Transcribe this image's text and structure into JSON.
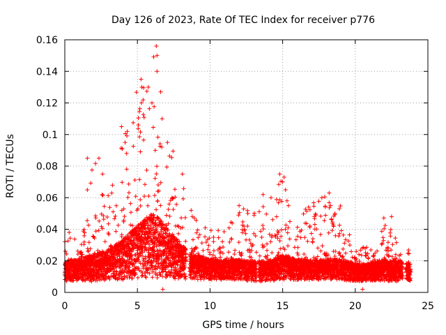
{
  "chart_data": {
    "type": "scatter",
    "title": "Day 126 of 2023, Rate Of TEC Index for receiver p776",
    "xlabel": "GPS time / hours",
    "ylabel": "ROTI / TECUs",
    "xlim": [
      0,
      25
    ],
    "ylim": [
      0,
      0.16
    ],
    "x_ticks": [
      0,
      5,
      10,
      15,
      20,
      25
    ],
    "x_tick_labels": [
      "0",
      "5",
      "10",
      "15",
      "20",
      "25"
    ],
    "y_ticks": [
      0,
      0.02,
      0.04,
      0.06,
      0.08,
      0.1,
      0.12,
      0.14,
      0.16
    ],
    "y_tick_labels": [
      "0",
      "0.02",
      "0.04",
      "0.06",
      "0.08",
      "0.1",
      "0.12",
      "0.14",
      "0.16"
    ],
    "grid": true,
    "marker": "+",
    "marker_color": "#ff0000",
    "data_gaps_hours": [
      [
        8.35,
        8.6
      ],
      [
        13.2,
        13.35
      ],
      [
        23.25,
        23.5
      ]
    ],
    "series": [
      {
        "name": "ROTI",
        "color": "#ff0000",
        "envelope_note": "Approximate per-hour envelope read from the plot: base is the typical lower band, typical is the dense cluster, peak is the upper extent of points in that hour.",
        "hourly_envelope": [
          {
            "hour": 0,
            "base": 0.007,
            "typical": 0.015,
            "peak": 0.038
          },
          {
            "hour": 1,
            "base": 0.007,
            "typical": 0.016,
            "peak": 0.035
          },
          {
            "hour": 2,
            "base": 0.007,
            "typical": 0.018,
            "peak": 0.085
          },
          {
            "hour": 3,
            "base": 0.008,
            "typical": 0.02,
            "peak": 0.065
          },
          {
            "hour": 4,
            "base": 0.008,
            "typical": 0.024,
            "peak": 0.105
          },
          {
            "hour": 5,
            "base": 0.009,
            "typical": 0.03,
            "peak": 0.135
          },
          {
            "hour": 6,
            "base": 0.009,
            "typical": 0.035,
            "peak": 0.156
          },
          {
            "hour": 7,
            "base": 0.009,
            "typical": 0.03,
            "peak": 0.105
          },
          {
            "hour": 8,
            "base": 0.008,
            "typical": 0.022,
            "peak": 0.075
          },
          {
            "hour": 9,
            "base": 0.008,
            "typical": 0.018,
            "peak": 0.05
          },
          {
            "hour": 10,
            "base": 0.008,
            "typical": 0.016,
            "peak": 0.042
          },
          {
            "hour": 11,
            "base": 0.008,
            "typical": 0.016,
            "peak": 0.04
          },
          {
            "hour": 12,
            "base": 0.008,
            "typical": 0.016,
            "peak": 0.055
          },
          {
            "hour": 13,
            "base": 0.007,
            "typical": 0.015,
            "peak": 0.05
          },
          {
            "hour": 14,
            "base": 0.007,
            "typical": 0.015,
            "peak": 0.06
          },
          {
            "hour": 15,
            "base": 0.008,
            "typical": 0.018,
            "peak": 0.075
          },
          {
            "hour": 16,
            "base": 0.008,
            "typical": 0.016,
            "peak": 0.045
          },
          {
            "hour": 17,
            "base": 0.008,
            "typical": 0.016,
            "peak": 0.06
          },
          {
            "hour": 18,
            "base": 0.008,
            "typical": 0.016,
            "peak": 0.063
          },
          {
            "hour": 19,
            "base": 0.008,
            "typical": 0.016,
            "peak": 0.055
          },
          {
            "hour": 20,
            "base": 0.007,
            "typical": 0.014,
            "peak": 0.03
          },
          {
            "hour": 21,
            "base": 0.007,
            "typical": 0.014,
            "peak": 0.03
          },
          {
            "hour": 22,
            "base": 0.007,
            "typical": 0.016,
            "peak": 0.048
          },
          {
            "hour": 23,
            "base": 0.007,
            "typical": 0.015,
            "peak": 0.03
          },
          {
            "hour": 23.8,
            "base": 0.007,
            "typical": 0.014,
            "peak": 0.03
          }
        ],
        "notable_points": [
          {
            "x": 0.3,
            "y": 0.038
          },
          {
            "x": 1.55,
            "y": 0.085
          },
          {
            "x": 1.55,
            "y": 0.065
          },
          {
            "x": 2.35,
            "y": 0.085
          },
          {
            "x": 2.6,
            "y": 0.075
          },
          {
            "x": 3.9,
            "y": 0.105
          },
          {
            "x": 4.15,
            "y": 0.095
          },
          {
            "x": 4.3,
            "y": 0.102
          },
          {
            "x": 5.25,
            "y": 0.135
          },
          {
            "x": 5.3,
            "y": 0.13
          },
          {
            "x": 5.75,
            "y": 0.13
          },
          {
            "x": 6.0,
            "y": 0.12
          },
          {
            "x": 6.3,
            "y": 0.156
          },
          {
            "x": 6.35,
            "y": 0.15
          },
          {
            "x": 6.35,
            "y": 0.14
          },
          {
            "x": 6.6,
            "y": 0.127
          },
          {
            "x": 6.7,
            "y": 0.11
          },
          {
            "x": 8.1,
            "y": 0.075
          },
          {
            "x": 8.7,
            "y": 0.052
          },
          {
            "x": 12.0,
            "y": 0.055
          },
          {
            "x": 12.6,
            "y": 0.05
          },
          {
            "x": 13.65,
            "y": 0.062
          },
          {
            "x": 14.2,
            "y": 0.06
          },
          {
            "x": 14.8,
            "y": 0.075
          },
          {
            "x": 15.0,
            "y": 0.07
          },
          {
            "x": 15.1,
            "y": 0.073
          },
          {
            "x": 15.2,
            "y": 0.065
          },
          {
            "x": 15.3,
            "y": 0.058
          },
          {
            "x": 15.4,
            "y": 0.055
          },
          {
            "x": 17.7,
            "y": 0.06
          },
          {
            "x": 18.2,
            "y": 0.063
          },
          {
            "x": 18.3,
            "y": 0.055
          },
          {
            "x": 18.6,
            "y": 0.05
          },
          {
            "x": 18.9,
            "y": 0.053
          },
          {
            "x": 22.5,
            "y": 0.048
          },
          {
            "x": 20.5,
            "y": 0.002
          },
          {
            "x": 6.75,
            "y": 0.002
          }
        ]
      }
    ]
  }
}
